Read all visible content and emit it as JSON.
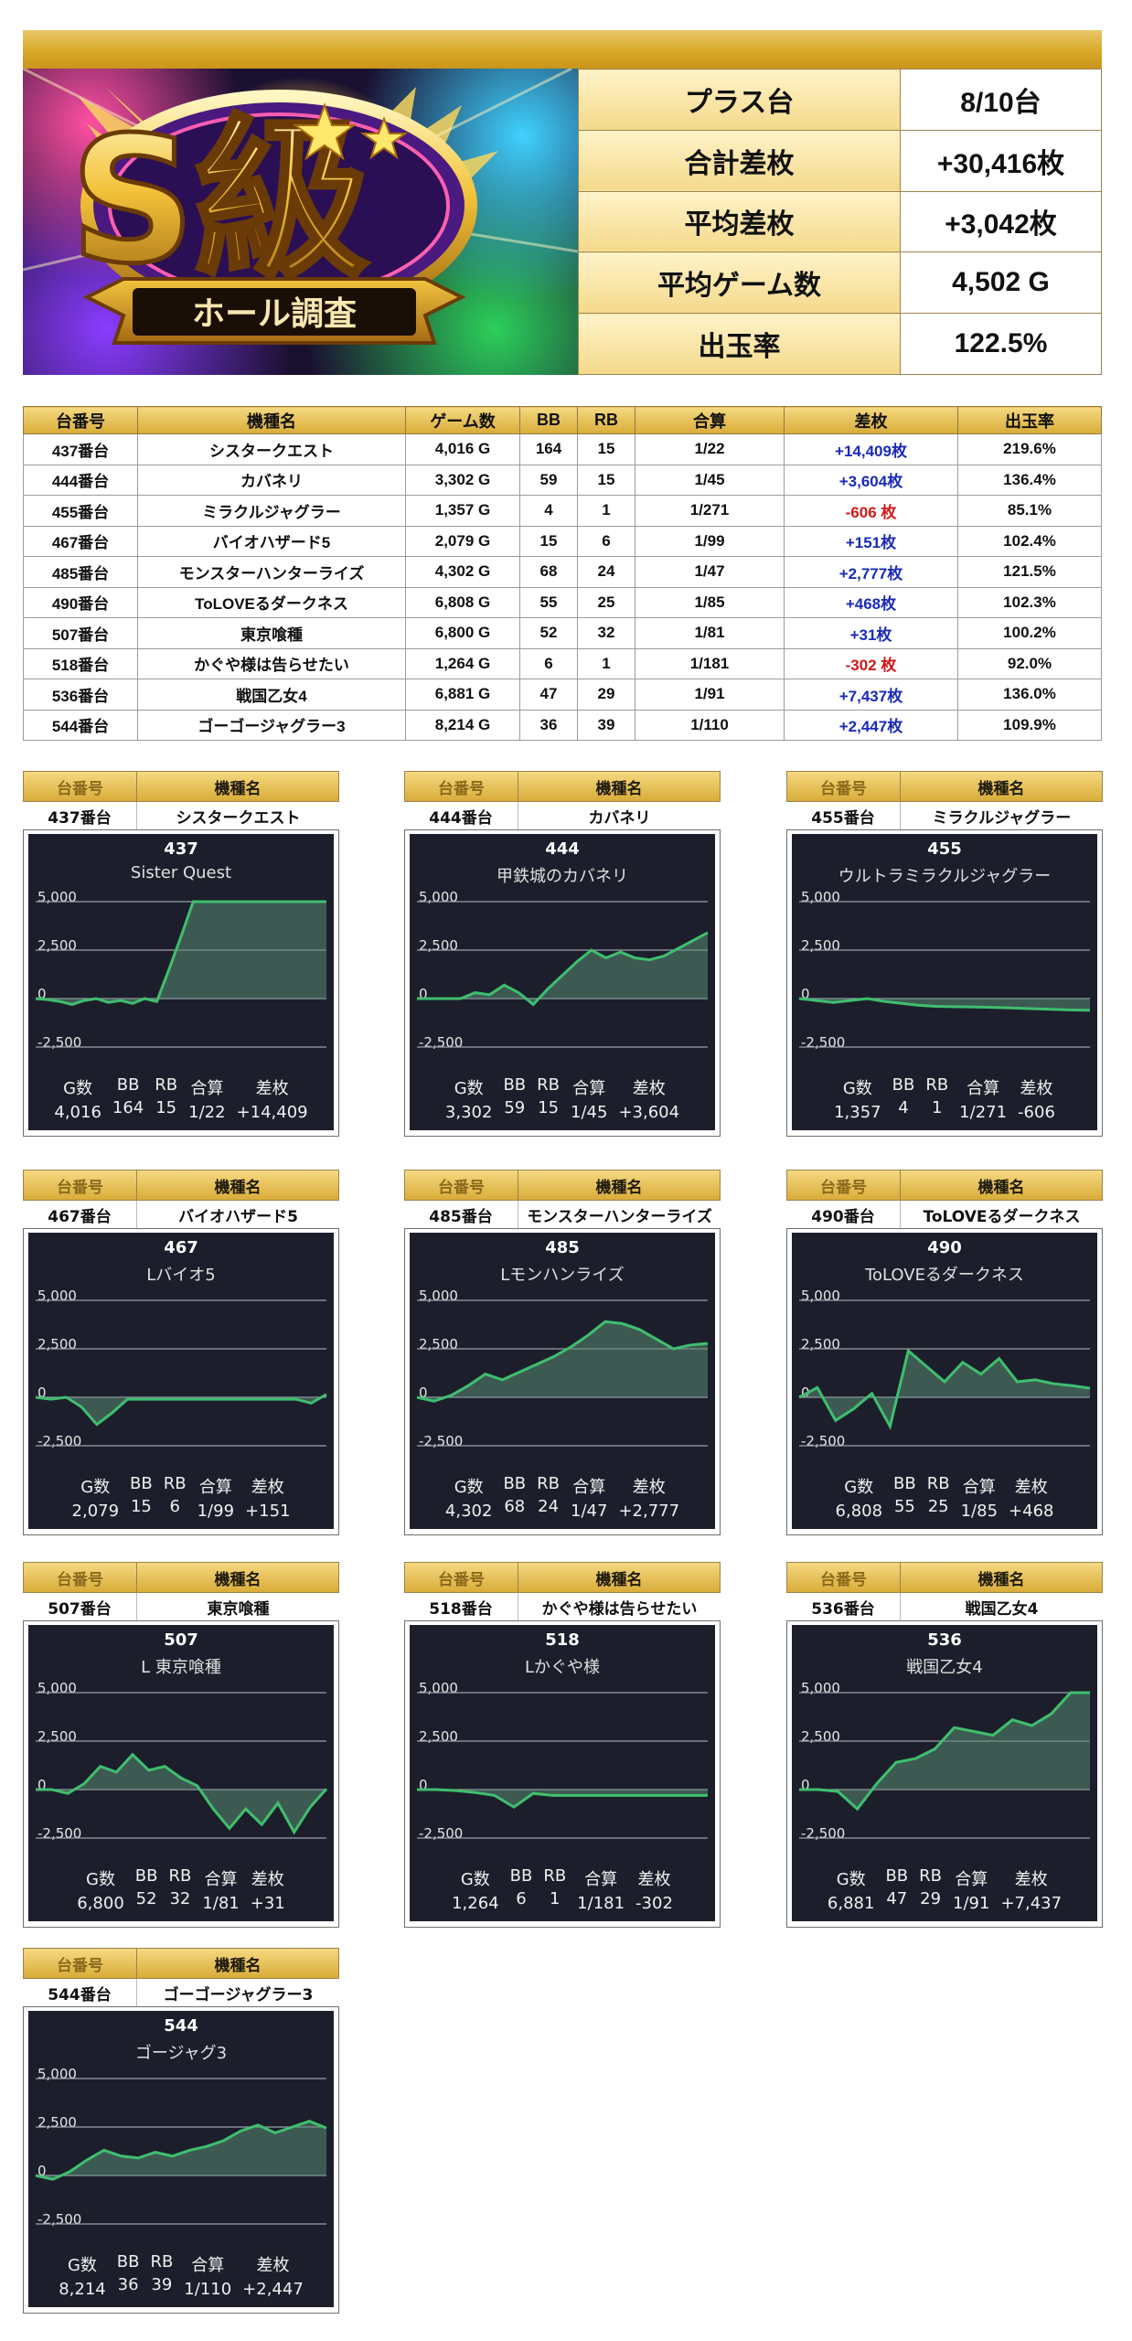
{
  "banner": {
    "badge_big": "S級",
    "subtitle": "ホール調査"
  },
  "summary": [
    {
      "label": "プラス台",
      "value": "8/10台"
    },
    {
      "label": "合計差枚",
      "value": "+30,416枚"
    },
    {
      "label": "平均差枚",
      "value": "+3,042枚"
    },
    {
      "label": "平均ゲーム数",
      "value": "4,502 G"
    },
    {
      "label": "出玉率",
      "value": "122.5%"
    }
  ],
  "table": {
    "headers": [
      "台番号",
      "機種名",
      "ゲーム数",
      "BB",
      "RB",
      "合算",
      "差枚",
      "出玉率"
    ],
    "rows": [
      [
        "437番台",
        "シスタークエスト",
        "4,016 G",
        "164",
        "15",
        "1/22",
        "+14,409枚",
        "219.6%"
      ],
      [
        "444番台",
        "カバネリ",
        "3,302 G",
        "59",
        "15",
        "1/45",
        "+3,604枚",
        "136.4%"
      ],
      [
        "455番台",
        "ミラクルジャグラー",
        "1,357 G",
        "4",
        "1",
        "1/271",
        "-606 枚",
        "85.1%"
      ],
      [
        "467番台",
        "バイオハザード5",
        "2,079 G",
        "15",
        "6",
        "1/99",
        "+151枚",
        "102.4%"
      ],
      [
        "485番台",
        "モンスターハンターライズ",
        "4,302 G",
        "68",
        "24",
        "1/47",
        "+2,777枚",
        "121.5%"
      ],
      [
        "490番台",
        "ToLOVEるダークネス",
        "6,808 G",
        "55",
        "25",
        "1/85",
        "+468枚",
        "102.3%"
      ],
      [
        "507番台",
        "東京喰種",
        "6,800 G",
        "52",
        "32",
        "1/81",
        "+31枚",
        "100.2%"
      ],
      [
        "518番台",
        "かぐや様は告らせたい",
        "1,264 G",
        "6",
        "1",
        "1/181",
        "-302 枚",
        "92.0%"
      ],
      [
        "536番台",
        "戦国乙女4",
        "6,881 G",
        "47",
        "29",
        "1/91",
        "+7,437枚",
        "136.0%"
      ],
      [
        "544番台",
        "ゴーゴージャグラー3",
        "8,214 G",
        "36",
        "39",
        "1/110",
        "+2,447枚",
        "109.9%"
      ]
    ]
  },
  "card_header": {
    "number_label": "台番号",
    "name_label": "機種名"
  },
  "stat_labels": [
    "G数",
    "BB",
    "RB",
    "合算",
    "差枚"
  ],
  "y_ticks": [
    "5,000",
    "2,500",
    "0",
    "-2,500"
  ],
  "colors": {
    "panel_bg": "#1c1f2b",
    "line": "#3fbf6e",
    "fill": "#5a8a72",
    "positive": "#1a2bb8",
    "negative": "#d01818",
    "gold": "#d9ac38"
  },
  "chart_data": [
    {
      "type": "area",
      "title": "437",
      "subtitle": "Sister Quest",
      "machine_label": "437番台",
      "machine_name": "シスタークエスト",
      "ylim": [
        -2500,
        5000
      ],
      "values": [
        0,
        -50,
        -150,
        -300,
        -100,
        0,
        -200,
        -100,
        -250,
        0,
        -150,
        1500,
        3200,
        5000,
        5000,
        5000,
        5000,
        5000,
        5000,
        5000,
        5000,
        5000,
        5000,
        5000,
        5000
      ],
      "stats": [
        "4,016",
        "164",
        "15",
        "1/22",
        "+14,409"
      ]
    },
    {
      "type": "area",
      "title": "444",
      "subtitle": "甲鉄城のカバネリ",
      "machine_label": "444番台",
      "machine_name": "カバネリ",
      "ylim": [
        -2500,
        5000
      ],
      "values": [
        0,
        0,
        0,
        0,
        300,
        200,
        700,
        300,
        -300,
        500,
        1200,
        1900,
        2500,
        2100,
        2400,
        2100,
        2000,
        2200,
        2600,
        3000,
        3400
      ],
      "stats": [
        "3,302",
        "59",
        "15",
        "1/45",
        "+3,604"
      ]
    },
    {
      "type": "area",
      "title": "455",
      "subtitle": "ウルトラミラクルジャグラー",
      "machine_label": "455番台",
      "machine_name": "ミラクルジャグラー",
      "ylim": [
        -2500,
        5000
      ],
      "values": [
        0,
        -100,
        -200,
        -100,
        0,
        -150,
        -250,
        -350,
        -400,
        -420,
        -430,
        -450,
        -470,
        -500,
        -530,
        -560,
        -590,
        -606
      ],
      "stats": [
        "1,357",
        "4",
        "1",
        "1/271",
        "-606"
      ]
    },
    {
      "type": "area",
      "title": "467",
      "subtitle": "Lバイオ5",
      "machine_label": "467番台",
      "machine_name": "バイオハザード5",
      "ylim": [
        -2500,
        5000
      ],
      "values": [
        0,
        -100,
        0,
        -500,
        -1400,
        -800,
        -100,
        -100,
        -100,
        -100,
        -100,
        -100,
        -100,
        -100,
        -100,
        -100,
        -100,
        -100,
        -300,
        151
      ],
      "stats": [
        "2,079",
        "15",
        "6",
        "1/99",
        "+151"
      ]
    },
    {
      "type": "area",
      "title": "485",
      "subtitle": "Lモンハンライズ",
      "machine_label": "485番台",
      "machine_name": "モンスターハンターライズ",
      "ylim": [
        -2500,
        5000
      ],
      "values": [
        0,
        -200,
        100,
        600,
        1200,
        900,
        1300,
        1700,
        2100,
        2600,
        3200,
        3900,
        3800,
        3500,
        3000,
        2500,
        2700,
        2777
      ],
      "stats": [
        "4,302",
        "68",
        "24",
        "1/47",
        "+2,777"
      ]
    },
    {
      "type": "area",
      "title": "490",
      "subtitle": "ToLOVEるダークネス",
      "machine_label": "490番台",
      "machine_name": "ToLOVEるダークネス",
      "ylim": [
        -2500,
        5000
      ],
      "values": [
        0,
        500,
        -1200,
        -600,
        200,
        -1500,
        2400,
        1600,
        800,
        1800,
        1200,
        2000,
        800,
        900,
        700,
        600,
        468
      ],
      "stats": [
        "6,808",
        "55",
        "25",
        "1/85",
        "+468"
      ]
    },
    {
      "type": "area",
      "title": "507",
      "subtitle": "L 東京喰種",
      "machine_label": "507番台",
      "machine_name": "東京喰種",
      "ylim": [
        -2500,
        5000
      ],
      "values": [
        0,
        0,
        -200,
        300,
        1200,
        900,
        1800,
        1000,
        1200,
        600,
        200,
        -1000,
        -2000,
        -1000,
        -1800,
        -700,
        -2200,
        -900,
        31
      ],
      "stats": [
        "6,800",
        "52",
        "32",
        "1/81",
        "+31"
      ]
    },
    {
      "type": "area",
      "title": "518",
      "subtitle": "Lかぐや様",
      "machine_label": "518番台",
      "machine_name": "かぐや様は告らせたい",
      "ylim": [
        -2500,
        5000
      ],
      "values": [
        0,
        0,
        -50,
        -150,
        -300,
        -900,
        -200,
        -300,
        -300,
        -300,
        -300,
        -300,
        -300,
        -300,
        -300,
        -302
      ],
      "stats": [
        "1,264",
        "6",
        "1",
        "1/181",
        "-302"
      ]
    },
    {
      "type": "area",
      "title": "536",
      "subtitle": "戦国乙女4",
      "machine_label": "536番台",
      "machine_name": "戦国乙女4",
      "ylim": [
        -2500,
        5000
      ],
      "values": [
        0,
        0,
        -100,
        -1000,
        300,
        1400,
        1600,
        2100,
        3200,
        3000,
        2800,
        3600,
        3300,
        3900,
        5000,
        5000
      ],
      "stats": [
        "6,881",
        "47",
        "29",
        "1/91",
        "+7,437"
      ]
    },
    {
      "type": "area",
      "title": "544",
      "subtitle": "ゴージャグ3",
      "machine_label": "544番台",
      "machine_name": "ゴーゴージャグラー3",
      "ylim": [
        -2500,
        5000
      ],
      "values": [
        0,
        -200,
        200,
        800,
        1300,
        1000,
        900,
        1200,
        1000,
        1300,
        1500,
        1800,
        2300,
        2600,
        2200,
        2500,
        2800,
        2447
      ],
      "stats": [
        "8,214",
        "36",
        "39",
        "1/110",
        "+2,447"
      ]
    }
  ]
}
